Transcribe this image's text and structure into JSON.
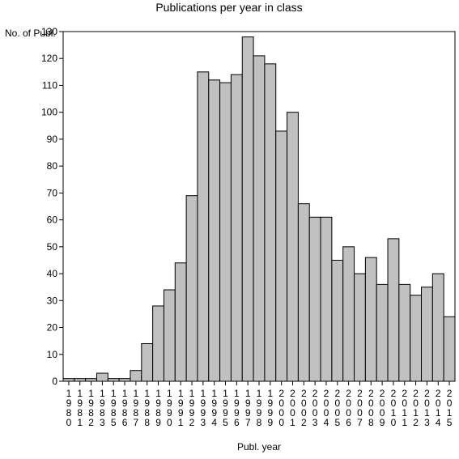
{
  "chart_data": {
    "type": "bar",
    "title": "Publications per year in class",
    "xlabel": "Publ. year",
    "ylabel": "No. of Publ.",
    "ylim": [
      0,
      130
    ],
    "yticks": [
      0,
      10,
      20,
      30,
      40,
      50,
      60,
      70,
      80,
      90,
      100,
      110,
      120,
      130
    ],
    "categories": [
      "1980",
      "1981",
      "1982",
      "1983",
      "1985",
      "1986",
      "1987",
      "1988",
      "1989",
      "1990",
      "1991",
      "1992",
      "1993",
      "1994",
      "1995",
      "1996",
      "1997",
      "1998",
      "1999",
      "2000",
      "2001",
      "2002",
      "2003",
      "2004",
      "2005",
      "2006",
      "2007",
      "2008",
      "2009",
      "2010",
      "2011",
      "2012",
      "2013",
      "2014",
      "2015"
    ],
    "values": [
      1,
      1,
      1,
      3,
      1,
      1,
      4,
      14,
      28,
      34,
      44,
      69,
      115,
      112,
      111,
      114,
      128,
      121,
      118,
      93,
      100,
      66,
      61,
      61,
      45,
      50,
      40,
      46,
      36,
      53,
      36,
      32,
      35,
      40,
      24
    ],
    "bar_color": "#c0c0c0",
    "grid": false
  }
}
